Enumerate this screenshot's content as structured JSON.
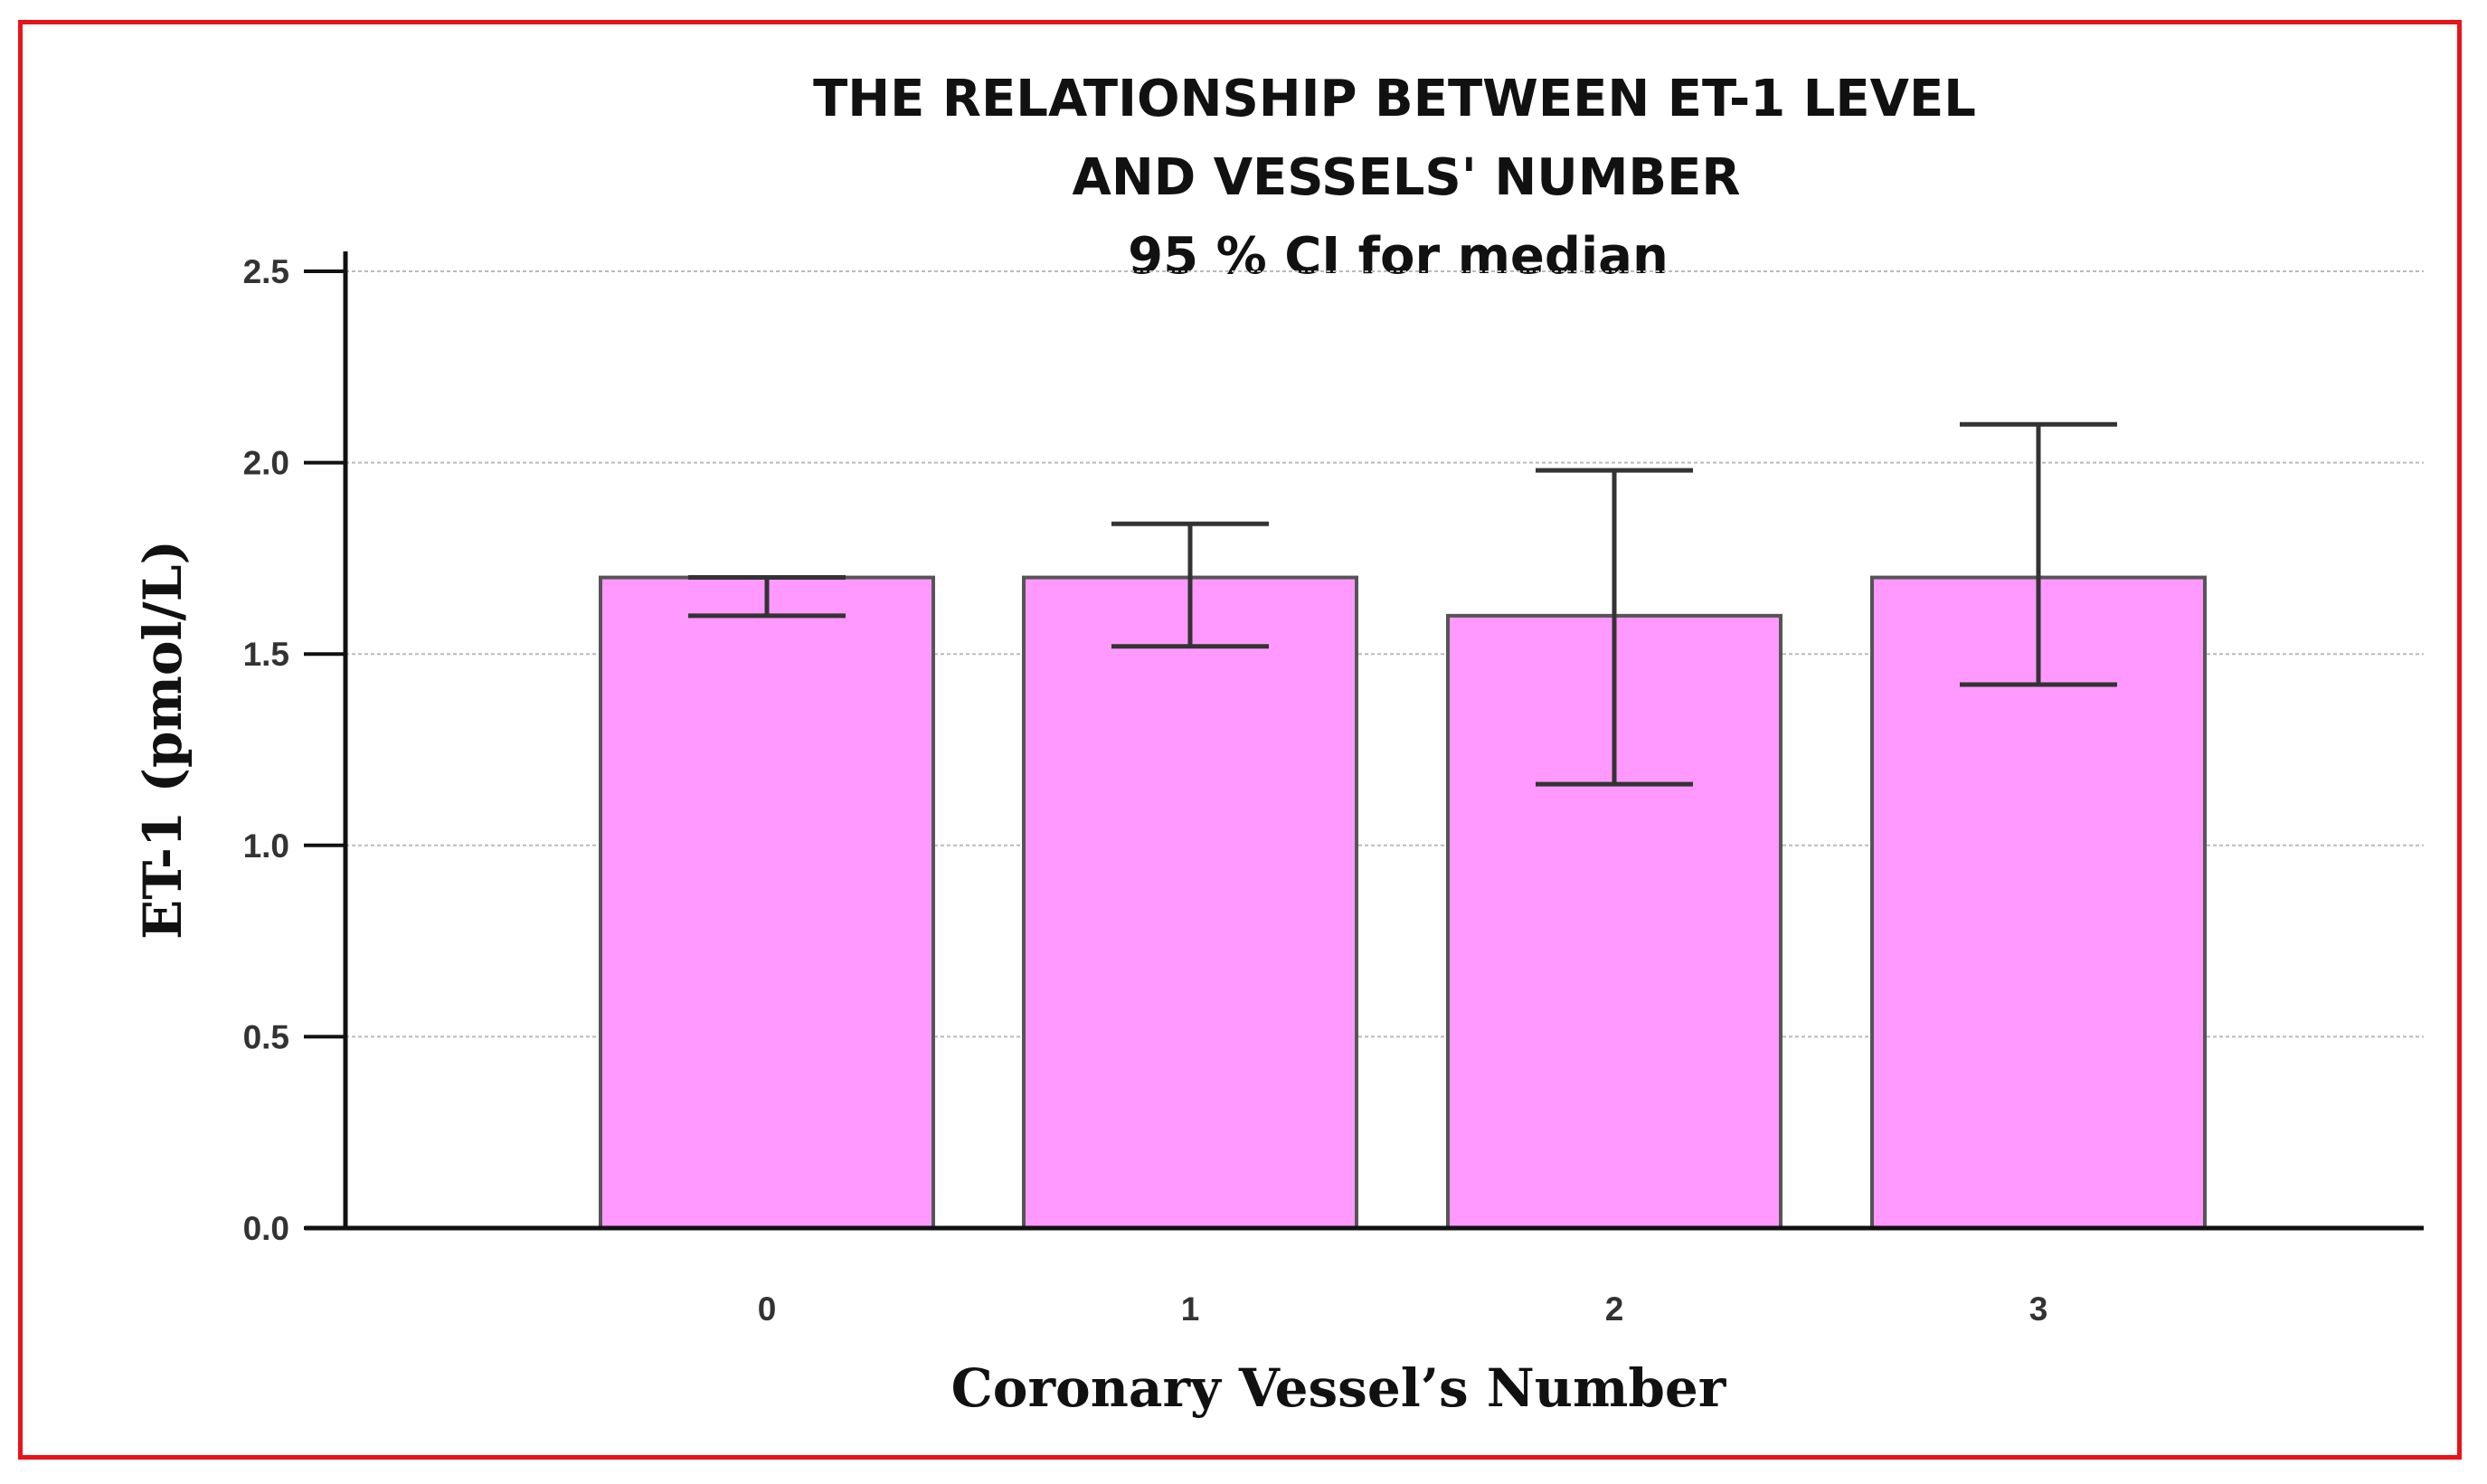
{
  "chart_data": {
    "type": "bar",
    "title_lines": [
      "THE RELATIONSHIP BETWEEN ET-1 LEVEL",
      "AND  VESSELS' NUMBER",
      "95 % CI for median"
    ],
    "xlabel": "Coronary Vessel’s Number",
    "ylabel": "ET-1 (pmol/L)",
    "categories": [
      "0",
      "1",
      "2",
      "3"
    ],
    "values": [
      1.7,
      1.7,
      1.6,
      1.7
    ],
    "ci_lower": [
      1.6,
      1.52,
      1.16,
      1.42
    ],
    "ci_upper": [
      1.7,
      1.84,
      1.98,
      2.1
    ],
    "ylim": [
      0,
      2.5
    ],
    "yticks": [
      "0.0",
      "0.5",
      "1.0",
      "1.5",
      "2.0",
      "2.5"
    ],
    "grid": true,
    "colors": {
      "bar_fill": "#ff99ff",
      "bar_stroke": "#555555",
      "error_bar": "#333333",
      "grid": "#bbbbbb",
      "axis": "#111111",
      "frame": "#e8141a"
    }
  }
}
